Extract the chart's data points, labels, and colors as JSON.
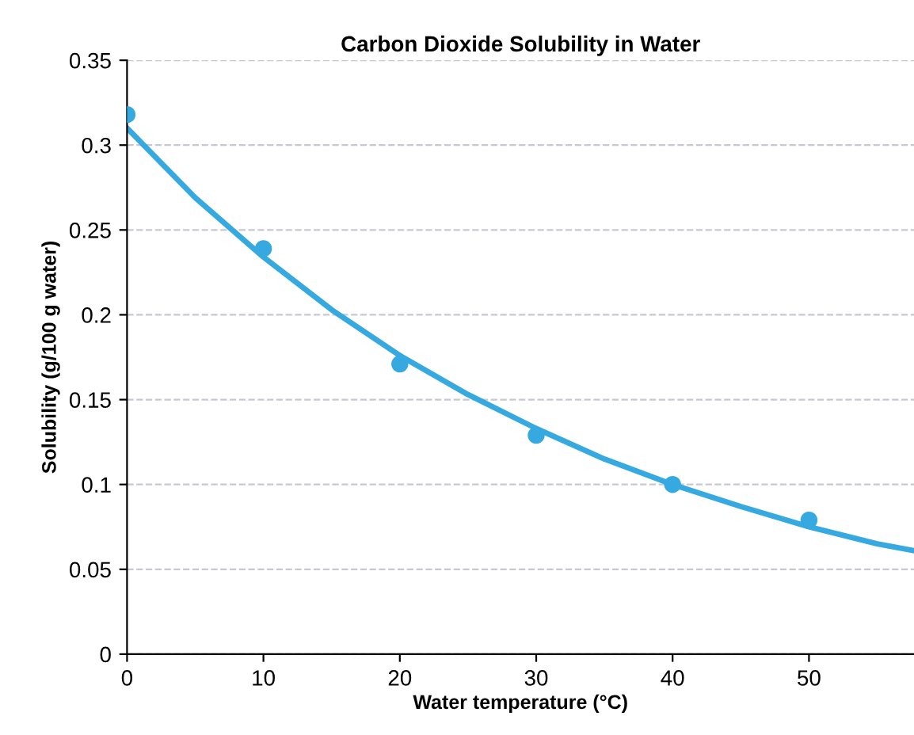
{
  "chart_data": {
    "type": "scatter",
    "title": "Carbon Dioxide Solubility in Water",
    "xlabel": "Water temperature (°C)",
    "ylabel": "Solubility (g/100 g water)",
    "x": [
      0,
      10,
      20,
      30,
      40,
      50
    ],
    "series": [
      {
        "color": "#36a9e1",
        "marker": "circle",
        "values": [
          0.318,
          0.239,
          0.171,
          0.129,
          0.1,
          0.079
        ]
      },
      {
        "type": "line",
        "color": "#36a9e1",
        "marker": "none",
        "x": [
          0,
          5,
          10,
          15,
          20,
          25,
          30,
          35,
          40,
          45,
          50,
          55,
          57.7
        ],
        "values": [
          0.31,
          0.269,
          0.234,
          0.203,
          0.176,
          0.153,
          0.133,
          0.115,
          0.1,
          0.087,
          0.075,
          0.065,
          0.061
        ]
      }
    ],
    "xlim": [
      0,
      57.7
    ],
    "xticks": [
      0,
      10,
      20,
      30,
      40,
      50
    ],
    "ylim": [
      0,
      0.35
    ],
    "yticks": [
      0,
      0.05,
      0.1,
      0.15,
      0.2,
      0.25,
      0.3,
      0.35
    ],
    "grid": "y",
    "legend": false
  }
}
